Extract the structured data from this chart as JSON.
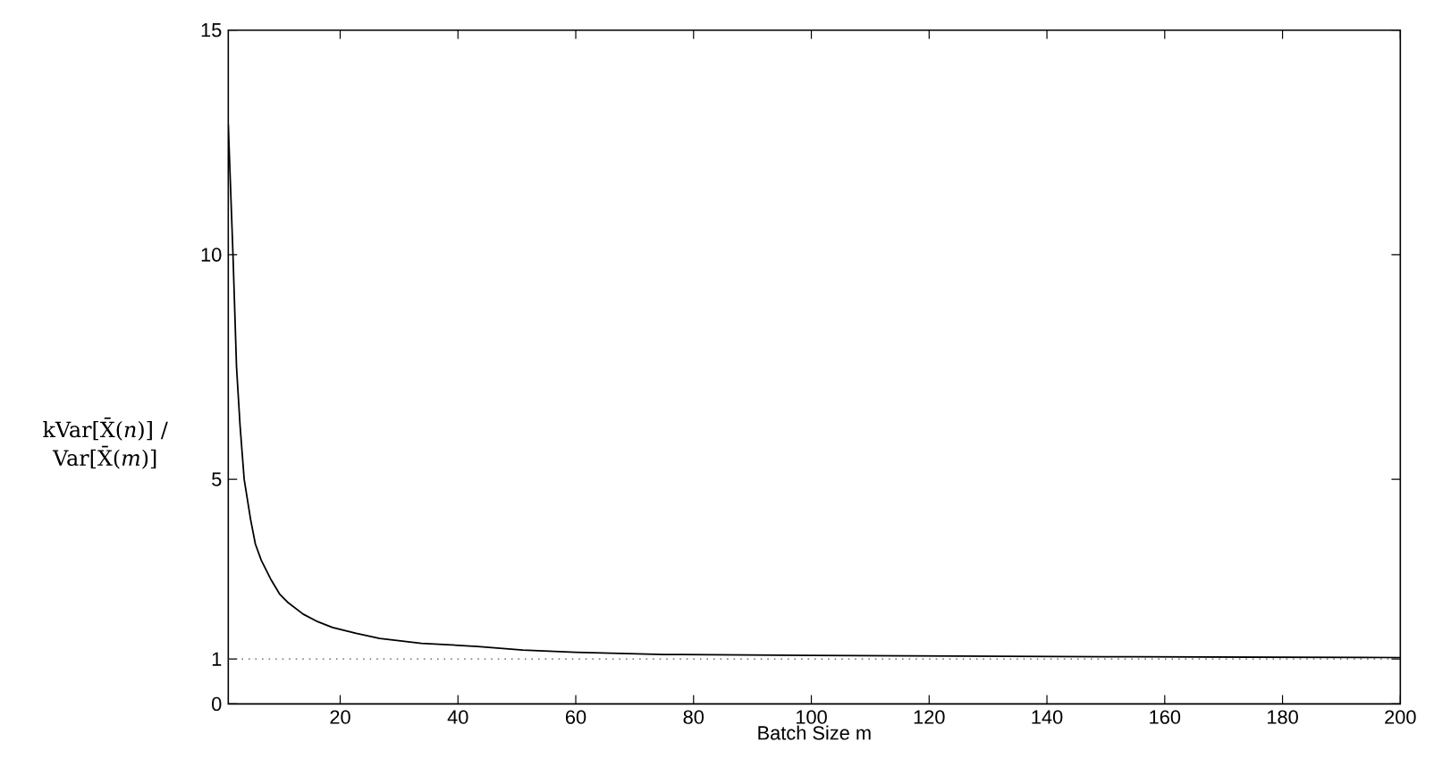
{
  "chart_data": {
    "type": "line",
    "xlabel": "Batch Size m",
    "ylabel": "kVar[X̄(*n*)] / Var[X̄(*m*)]",
    "x": [
      1,
      1.8,
      2.4,
      3.0,
      3.7,
      4.8,
      5.6,
      6.6,
      8.2,
      9.7,
      11.2,
      13.7,
      16.2,
      18.7,
      22.7,
      26.7,
      33.8,
      43.3,
      51,
      60,
      75,
      100,
      116,
      150,
      200
    ],
    "values": [
      12.9,
      10,
      7.5,
      6.2,
      5.0,
      4.1,
      3.56,
      3.2,
      2.78,
      2.45,
      2.25,
      2.0,
      1.83,
      1.7,
      1.57,
      1.46,
      1.35,
      1.28,
      1.2,
      1.15,
      1.1,
      1.08,
      1.07,
      1.05,
      1.03
    ],
    "color": "#000000",
    "xlim": [
      1,
      200
    ],
    "ylim": [
      0,
      15
    ],
    "xticks": [
      20,
      40,
      60,
      80,
      100,
      120,
      140,
      160,
      180,
      200
    ],
    "yticks": [
      0,
      1,
      5,
      10,
      15
    ],
    "ref_lines": [
      {
        "axis": "y",
        "value": 1,
        "color": "#555555",
        "line_style": "dotted"
      }
    ]
  }
}
